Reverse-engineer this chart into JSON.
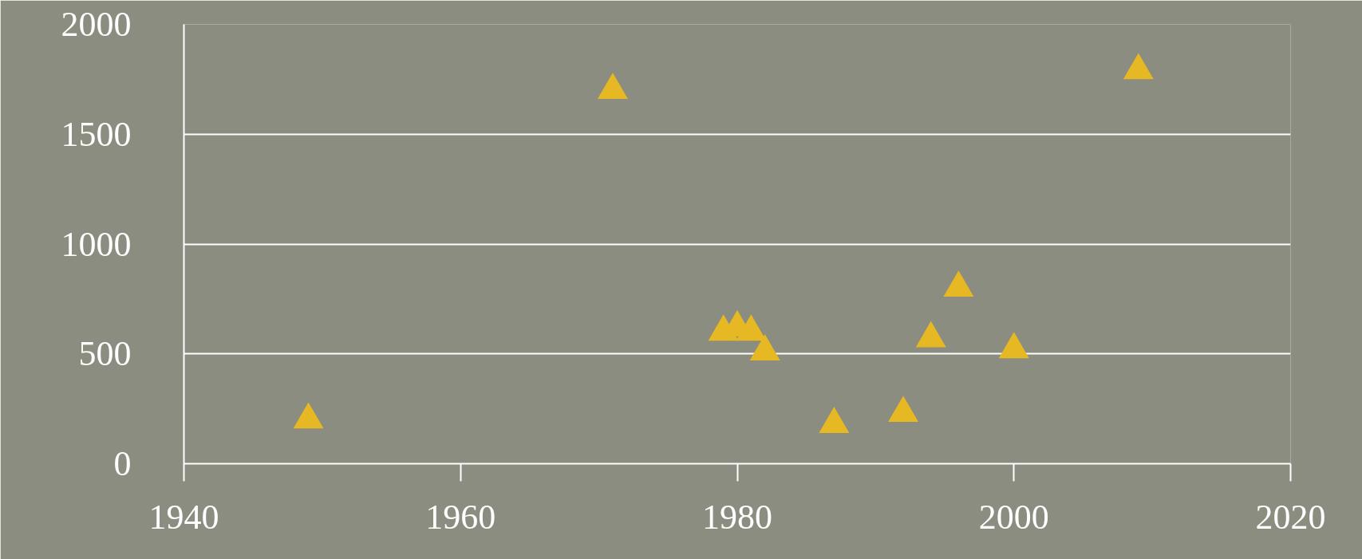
{
  "chart_data": {
    "type": "scatter",
    "x": [
      1949,
      1971,
      2009,
      1979,
      1980,
      1981,
      1982,
      1987,
      1992,
      1994,
      1996,
      2000
    ],
    "series": [
      {
        "color": "#e6b823",
        "values": [
          200,
          1700,
          1790,
          600,
          620,
          600,
          510,
          180,
          230,
          570,
          800,
          520
        ]
      }
    ],
    "xlim": [
      1940,
      2020
    ],
    "ylim": [
      0,
      2000
    ],
    "xticks": [
      1940,
      1960,
      1980,
      2000,
      2020
    ],
    "yticks": [
      0,
      500,
      1000,
      1500,
      2000
    ],
    "grid": "y",
    "marker": "triangle"
  }
}
